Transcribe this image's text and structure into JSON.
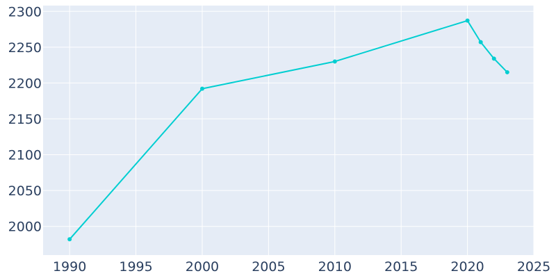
{
  "chart_data": {
    "type": "line",
    "title": "",
    "xlabel": "",
    "ylabel": "",
    "x": [
      1990,
      2000,
      2010,
      2020,
      2021,
      2022,
      2023
    ],
    "series": [
      {
        "values": [
          1982,
          2192,
          2230,
          2287,
          2257,
          2234,
          2215
        ]
      }
    ],
    "xlim": [
      1988,
      2025
    ],
    "ylim": [
      1960,
      2308
    ],
    "xticks": [
      1990,
      1995,
      2000,
      2005,
      2010,
      2015,
      2020,
      2025
    ],
    "yticks": [
      2000,
      2050,
      2100,
      2150,
      2200,
      2250,
      2300
    ],
    "grid": true,
    "legend": "none",
    "colors": {
      "line": "#00ced1",
      "plot_background": "#e5ecf6",
      "grid": "#ffffff",
      "text": "#2a3f5f"
    }
  }
}
